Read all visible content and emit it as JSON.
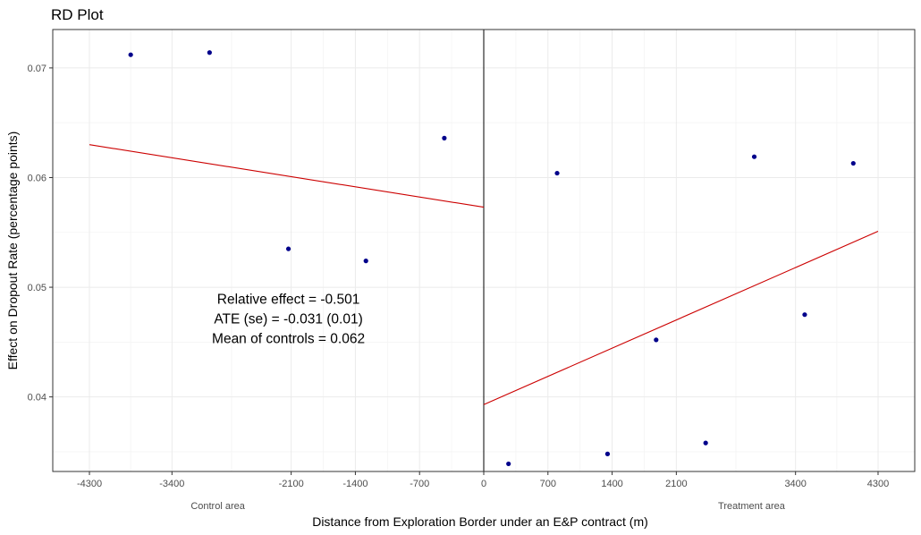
{
  "chart_data": {
    "type": "scatter",
    "title": "RD Plot",
    "xlabel": "Distance from Exploration Border under an E&P contract (m)",
    "ylabel": "Effect on Dropout Rate (percentage points)",
    "xlim": [
      -4700,
      4700
    ],
    "ylim": [
      0.0332,
      0.0735
    ],
    "x_ticks": [
      -4300,
      -3400,
      -2100,
      -1400,
      -700,
      0,
      700,
      1400,
      2100,
      3400,
      4300
    ],
    "x_tick_labels": [
      "-4300",
      "-3400",
      "-2100",
      "-1400",
      "-700",
      "0",
      "700",
      "1400",
      "2100",
      "3400",
      "4300"
    ],
    "y_ticks": [
      0.04,
      0.05,
      0.06,
      0.07
    ],
    "y_tick_labels": [
      "0.04",
      "0.05",
      "0.06",
      "0.07"
    ],
    "grid": true,
    "cutoff": 0,
    "region_labels": [
      {
        "text": "Control area",
        "x": -2900
      },
      {
        "text": "Treatment area",
        "x": 2920
      }
    ],
    "points": [
      {
        "x": -3850,
        "y": 0.0712
      },
      {
        "x": -2990,
        "y": 0.0714
      },
      {
        "x": -2130,
        "y": 0.0535
      },
      {
        "x": -1285,
        "y": 0.0524
      },
      {
        "x": -430,
        "y": 0.0636
      },
      {
        "x": 270,
        "y": 0.0339
      },
      {
        "x": 800,
        "y": 0.0604
      },
      {
        "x": 1350,
        "y": 0.0348
      },
      {
        "x": 1880,
        "y": 0.0452
      },
      {
        "x": 2420,
        "y": 0.0358
      },
      {
        "x": 2950,
        "y": 0.0619
      },
      {
        "x": 3500,
        "y": 0.0475
      },
      {
        "x": 4030,
        "y": 0.0613
      }
    ],
    "fit_lines": [
      {
        "x": [
          -4300,
          0
        ],
        "y": [
          0.063,
          0.0573
        ]
      },
      {
        "x": [
          0,
          4300
        ],
        "y": [
          0.0393,
          0.0551
        ]
      }
    ],
    "annotations": [
      "Relative effect = -0.501",
      "ATE (se) = -0.031 (0.01)",
      "Mean of controls = 0.062"
    ],
    "annotation_anchor": {
      "x": -2130,
      "y": 0.0485
    },
    "colors": {
      "points": "#00008b",
      "fit": "#cc0000",
      "cutoff": "#000000",
      "panel_border": "#333333"
    }
  }
}
